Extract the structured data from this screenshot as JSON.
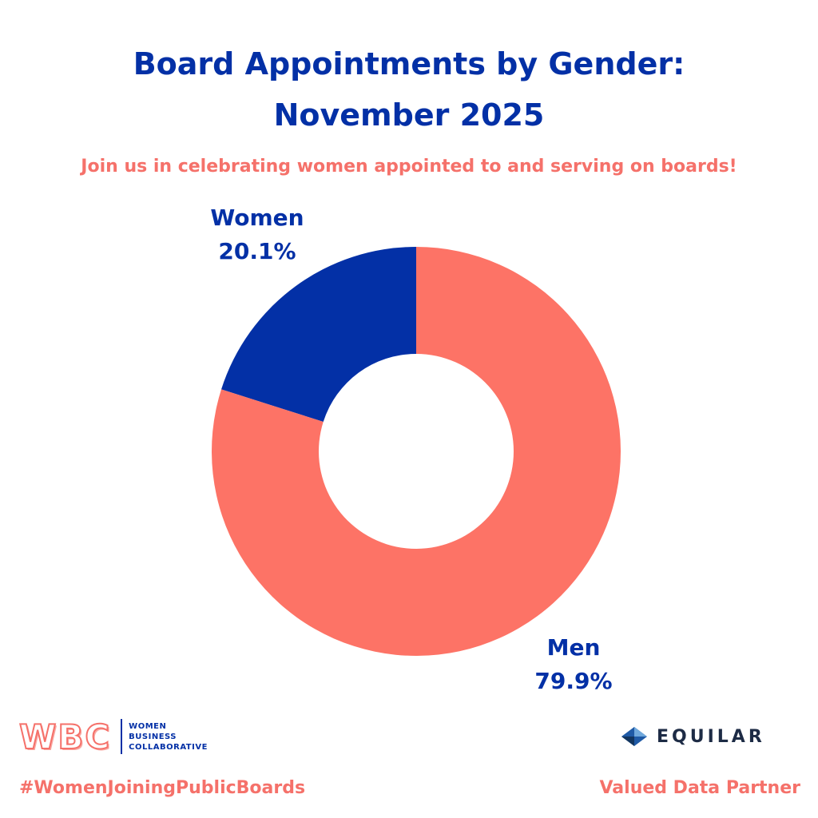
{
  "header": {
    "title_line1": "Board Appointments by Gender:",
    "title_line2": "November 2025",
    "subtitle": "Join us in celebrating women appointed to and serving on boards!"
  },
  "chart_data": {
    "type": "pie",
    "style": "donut",
    "title": "Board Appointments by Gender: November 2025",
    "slices": [
      {
        "label": "Women",
        "value": 20.1,
        "display": "20.1%",
        "color": "#0330a6"
      },
      {
        "label": "Men",
        "value": 79.9,
        "display": "79.9%",
        "color": "#fd7366"
      }
    ],
    "label_color": "#0330a6"
  },
  "footer": {
    "wbc_mark": "WBC",
    "wbc_words": [
      "WOMEN",
      "BUSINESS",
      "COLLABORATIVE"
    ],
    "equilar_name": "EQUILAR",
    "hashtag": "#WomenJoiningPublicBoards",
    "partner": "Valued Data Partner"
  },
  "colors": {
    "primary_blue": "#0330a6",
    "coral": "#f5716a",
    "equilar_navy": "#1d2b45"
  }
}
